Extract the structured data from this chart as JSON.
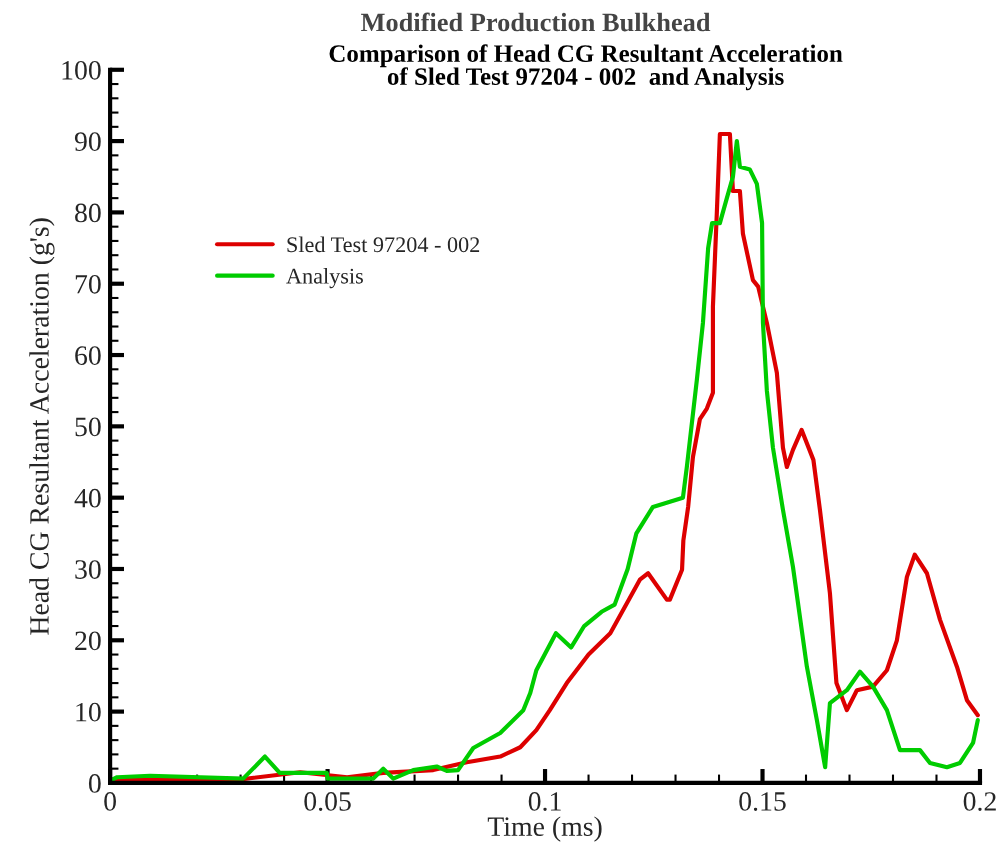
{
  "chart_data": {
    "type": "line",
    "title": "Modified Production Bulkhead",
    "subtitle": "Comparison of Head CG Resultant Acceleration\nof Sled Test 97204 - 002  and Analysis",
    "xlabel": "Time (ms)",
    "ylabel": "Head CG Resultant Acceleration (g's)",
    "xlim": [
      0,
      0.2
    ],
    "ylim": [
      0,
      100
    ],
    "xticks": [
      0,
      {
        "value": 0.01,
        "label": null
      },
      {
        "value": 0.02,
        "label": null
      },
      {
        "value": 0.03,
        "label": null
      },
      {
        "value": 0.04,
        "label": null
      },
      0.05,
      {
        "value": 0.06,
        "label": null
      },
      {
        "value": 0.07,
        "label": null
      },
      {
        "value": 0.08,
        "label": null
      },
      {
        "value": 0.09,
        "label": null
      },
      0.1,
      {
        "value": 0.11,
        "label": null
      },
      {
        "value": 0.12,
        "label": null
      },
      {
        "value": 0.13,
        "label": null
      },
      {
        "value": 0.14,
        "label": null
      },
      0.15,
      {
        "value": 0.16,
        "label": null
      },
      {
        "value": 0.17,
        "label": null
      },
      {
        "value": 0.18,
        "label": null
      },
      {
        "value": 0.19,
        "label": null
      },
      0.2
    ],
    "yticks": [
      0,
      {
        "value": 2,
        "label": null
      },
      {
        "value": 4,
        "label": null
      },
      {
        "value": 6,
        "label": null
      },
      {
        "value": 8,
        "label": null
      },
      10,
      {
        "value": 12,
        "label": null
      },
      {
        "value": 14,
        "label": null
      },
      {
        "value": 16,
        "label": null
      },
      {
        "value": 18,
        "label": null
      },
      20,
      {
        "value": 22,
        "label": null
      },
      {
        "value": 24,
        "label": null
      },
      {
        "value": 26,
        "label": null
      },
      {
        "value": 28,
        "label": null
      },
      30,
      {
        "value": 32,
        "label": null
      },
      {
        "value": 34,
        "label": null
      },
      {
        "value": 36,
        "label": null
      },
      {
        "value": 38,
        "label": null
      },
      40,
      {
        "value": 42,
        "label": null
      },
      {
        "value": 44,
        "label": null
      },
      {
        "value": 46,
        "label": null
      },
      {
        "value": 48,
        "label": null
      },
      50,
      {
        "value": 52,
        "label": null
      },
      {
        "value": 54,
        "label": null
      },
      {
        "value": 56,
        "label": null
      },
      {
        "value": 58,
        "label": null
      },
      60,
      {
        "value": 62,
        "label": null
      },
      {
        "value": 64,
        "label": null
      },
      {
        "value": 66,
        "label": null
      },
      {
        "value": 68,
        "label": null
      },
      70,
      {
        "value": 72,
        "label": null
      },
      {
        "value": 74,
        "label": null
      },
      {
        "value": 76,
        "label": null
      },
      {
        "value": 78,
        "label": null
      },
      80,
      {
        "value": 82,
        "label": null
      },
      {
        "value": 84,
        "label": null
      },
      {
        "value": 86,
        "label": null
      },
      {
        "value": 88,
        "label": null
      },
      90,
      {
        "value": 92,
        "label": null
      },
      {
        "value": 94,
        "label": null
      },
      {
        "value": 96,
        "label": null
      },
      {
        "value": 98,
        "label": null
      },
      100
    ],
    "grid": false,
    "legend": "left",
    "line_style": "solid",
    "series": [
      {
        "name": "Sled Test 97204 - 002",
        "color": "#dd0000",
        "x": [
          0,
          0.03,
          0.0437,
          0.0545,
          0.0628,
          0.0743,
          0.082,
          0.0897,
          0.0943,
          0.098,
          0.1011,
          0.105,
          0.11,
          0.115,
          0.1218,
          0.1237,
          0.128,
          0.1287,
          0.1315,
          0.1318,
          0.1329,
          0.134,
          0.1356,
          0.1372,
          0.1386,
          0.1386,
          0.1395,
          0.1402,
          0.1425,
          0.1432,
          0.1448,
          0.1455,
          0.1478,
          0.149,
          0.151,
          0.1533,
          0.1547,
          0.1556,
          0.157,
          0.159,
          0.1617,
          0.1632,
          0.1655,
          0.167,
          0.1694,
          0.1717,
          0.1754,
          0.1786,
          0.1809,
          0.1832,
          0.185,
          0.1878,
          0.1908,
          0.1947,
          0.197,
          0.1995
        ],
        "values": [
          0.5,
          0.5,
          1.5,
          0.8,
          1.4,
          1.8,
          2.9,
          3.7,
          5,
          7.4,
          10.2,
          14,
          18,
          21,
          28.5,
          29.4,
          25.7,
          25.7,
          29.9,
          34,
          38.7,
          45.7,
          51,
          52.5,
          54.7,
          66.8,
          80,
          91,
          91,
          83,
          83,
          77,
          70.5,
          69.6,
          64.5,
          57.5,
          47,
          44.3,
          46.7,
          49.5,
          45.3,
          38.3,
          26.6,
          14,
          10.2,
          13,
          13.5,
          15.8,
          20,
          28.9,
          32,
          29.4,
          22.9,
          16.3,
          11.6,
          9.5
        ]
      },
      {
        "name": "Analysis",
        "color": "#00cc00",
        "x": [
          0,
          0.0016,
          0.0092,
          0.0306,
          0.0356,
          0.039,
          0.0498,
          0.05,
          0.0605,
          0.0628,
          0.0651,
          0.0697,
          0.0751,
          0.0774,
          0.08,
          0.0835,
          0.0897,
          0.095,
          0.0966,
          0.098,
          0.1025,
          0.106,
          0.109,
          0.113,
          0.116,
          0.119,
          0.121,
          0.1248,
          0.1317,
          0.1326,
          0.1349,
          0.1363,
          0.1375,
          0.1384,
          0.1402,
          0.1418,
          0.1432,
          0.1441,
          0.1448,
          0.1471,
          0.1487,
          0.1499,
          0.1501,
          0.151,
          0.1524,
          0.1547,
          0.157,
          0.1602,
          0.1625,
          0.1644,
          0.1655,
          0.1694,
          0.1724,
          0.1754,
          0.1786,
          0.1816,
          0.1862,
          0.1885,
          0.1924,
          0.1954,
          0.1984,
          0.1995
        ],
        "values": [
          0.3,
          0.8,
          1,
          0.6,
          3.7,
          1.4,
          1.4,
          0.6,
          0.6,
          2,
          0.6,
          1.8,
          2.3,
          1.7,
          1.8,
          4.9,
          7,
          10.2,
          12.6,
          15.8,
          21,
          19,
          22,
          24,
          25,
          30,
          35,
          38.7,
          40,
          44.3,
          56.5,
          64.5,
          75,
          78.5,
          78.5,
          82,
          85,
          90,
          86.4,
          86,
          84,
          78.5,
          64.5,
          55,
          47,
          38.3,
          30.3,
          16.3,
          8.8,
          2.2,
          11.2,
          13,
          15.6,
          13.5,
          10.2,
          4.6,
          4.6,
          2.8,
          2.2,
          2.8,
          5.6,
          8.8
        ]
      }
    ]
  }
}
